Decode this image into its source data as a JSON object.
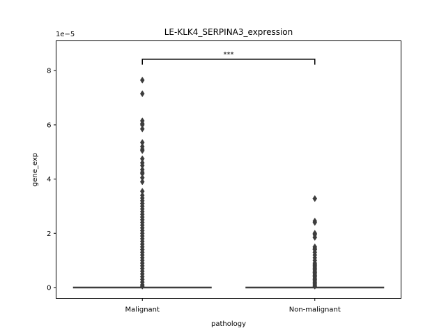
{
  "chart_data": {
    "type": "box",
    "title": "LE-KLK4_SERPINA3_expression",
    "xlabel": "pathology",
    "ylabel": "gene_exp",
    "offset_label": "1e−5",
    "categories": [
      "Malignant",
      "Non-malignant"
    ],
    "ylim": [
      -0.4,
      9.1
    ],
    "yticks": [
      0,
      2,
      4,
      6,
      8
    ],
    "ytick_labels": [
      "0",
      "2",
      "4",
      "6",
      "8"
    ],
    "box_color": "#3d3d3d",
    "boxes": [
      {
        "category": "Malignant",
        "q1": 0,
        "median": 0,
        "q3": 0,
        "whisker_low": 0,
        "whisker_high": 0,
        "outliers": [
          7.65,
          7.15,
          6.15,
          6.05,
          6.0,
          5.85,
          5.35,
          5.2,
          5.1,
          5.05,
          4.75,
          4.6,
          4.5,
          4.35,
          4.25,
          4.2,
          4.05,
          3.9,
          3.55,
          3.4,
          3.3,
          3.2,
          3.1,
          3.0,
          2.9,
          2.8,
          2.7,
          2.6,
          2.5,
          2.4,
          2.3,
          2.2,
          2.1,
          2.0,
          1.9,
          1.8,
          1.7,
          1.6,
          1.5,
          1.4,
          1.3,
          1.2,
          1.1,
          1.0,
          0.9,
          0.8,
          0.7,
          0.6,
          0.5,
          0.4,
          0.3,
          0.2,
          0.1,
          0.05
        ]
      },
      {
        "category": "Non-malignant",
        "q1": 0,
        "median": 0,
        "q3": 0,
        "whisker_low": 0,
        "whisker_high": 0,
        "outliers": [
          3.28,
          2.45,
          2.4,
          2.0,
          1.95,
          1.85,
          1.5,
          1.45,
          1.4,
          1.3,
          1.2,
          1.1,
          1.0,
          0.9,
          0.85,
          0.8,
          0.75,
          0.7,
          0.65,
          0.6,
          0.55,
          0.5,
          0.45,
          0.4,
          0.35,
          0.3,
          0.25,
          0.2,
          0.15,
          0.1,
          0.05
        ]
      }
    ],
    "annotation": {
      "text": "***",
      "between": [
        "Malignant",
        "Non-malignant"
      ],
      "y": 8.42,
      "tip": 8.22
    }
  }
}
